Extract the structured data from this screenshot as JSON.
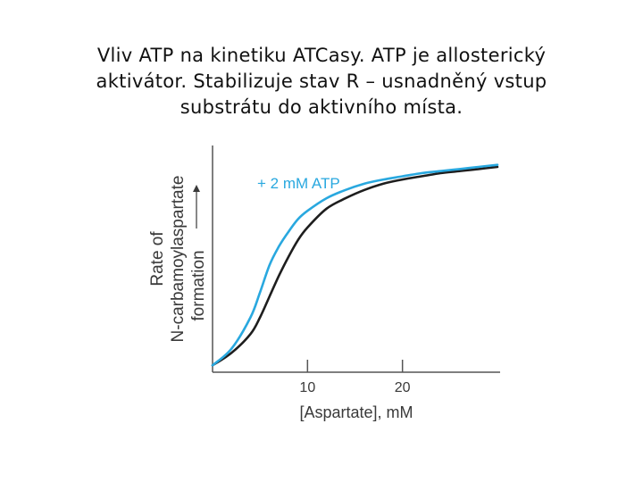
{
  "slide": {
    "title_lines": [
      "Vliv ATP na kinetiku ATCasy. ATP je allosterický",
      "aktivátor. Stabilizuje stav R – usnadněný vstup",
      "substrátu do aktivního místa."
    ]
  },
  "chart_data": {
    "type": "line",
    "xlabel": "[Aspartate], mM",
    "ylabel_lines": [
      "Rate of",
      "N-carbamoylaspartate",
      "formation"
    ],
    "x_ticks": [
      10,
      20
    ],
    "xlim": [
      0,
      30
    ],
    "ylim": [
      0,
      1
    ],
    "grid": false,
    "annotations": [
      {
        "text": "+ 2 mM ATP",
        "series": "+ 2 mM ATP"
      }
    ],
    "series": [
      {
        "name": "+ 2 mM ATP",
        "color": "#29a8df",
        "x": [
          0,
          2,
          4,
          5,
          6,
          7,
          8,
          9,
          10,
          12,
          14,
          16,
          18,
          20,
          22,
          24,
          26,
          28,
          30
        ],
        "y": [
          0.02,
          0.1,
          0.25,
          0.37,
          0.5,
          0.59,
          0.66,
          0.72,
          0.76,
          0.82,
          0.86,
          0.89,
          0.91,
          0.925,
          0.94,
          0.95,
          0.96,
          0.97,
          0.98
        ]
      },
      {
        "name": "",
        "color": "#1e1e1e",
        "x": [
          0,
          2,
          4,
          5,
          6,
          7,
          8,
          9,
          10,
          12,
          14,
          16,
          18,
          20,
          22,
          24,
          26,
          28,
          30
        ],
        "y": [
          0.02,
          0.08,
          0.17,
          0.25,
          0.35,
          0.45,
          0.54,
          0.62,
          0.68,
          0.77,
          0.82,
          0.86,
          0.89,
          0.91,
          0.925,
          0.94,
          0.95,
          0.96,
          0.97
        ]
      }
    ]
  }
}
